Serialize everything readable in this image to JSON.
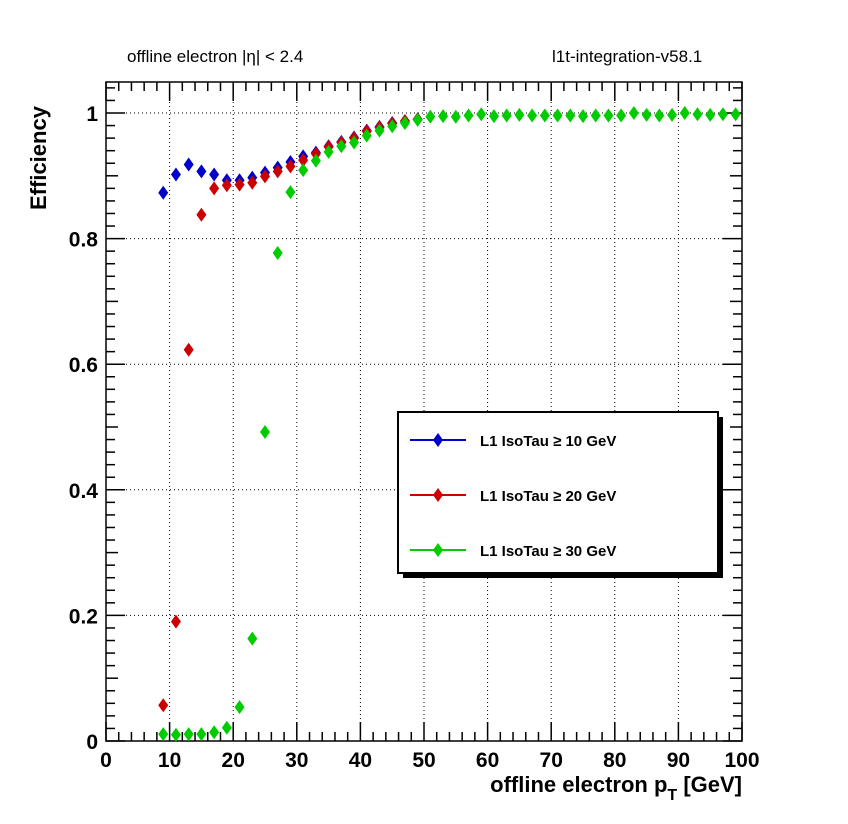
{
  "header": {
    "left": "offline electron |η| < 2.4",
    "right": "l1t-integration-v58.1"
  },
  "chart_data": {
    "type": "scatter",
    "xlabel": "offline electron p",
    "xlabel_sub": "T",
    "xlabel_unit": " [GeV]",
    "ylabel": "Efficiency",
    "xlim": [
      0,
      100
    ],
    "ylim": [
      0,
      1.05
    ],
    "x_ticks": [
      "0",
      "10",
      "20",
      "30",
      "40",
      "50",
      "60",
      "70",
      "80",
      "90",
      "100"
    ],
    "y_ticks": [
      "0",
      "0.2",
      "0.4",
      "0.6",
      "0.8",
      "1"
    ],
    "grid": true,
    "legend_position": "center-right",
    "series": [
      {
        "name": "L1 IsoTau ≥ 10 GeV",
        "color": "#0000cc",
        "x": [
          9,
          11,
          13,
          15,
          17,
          19,
          21,
          23,
          25,
          27,
          29,
          31,
          33,
          35,
          37,
          39,
          41,
          43,
          45,
          47,
          49
        ],
        "y": [
          0.873,
          0.902,
          0.918,
          0.907,
          0.902,
          0.893,
          0.893,
          0.897,
          0.905,
          0.913,
          0.922,
          0.931,
          0.937,
          0.947,
          0.954,
          0.961,
          0.972,
          0.978,
          0.984,
          0.987,
          0.99
        ]
      },
      {
        "name": "L1 IsoTau ≥ 20 GeV",
        "color": "#cc0000",
        "x": [
          9,
          11,
          13,
          15,
          17,
          19,
          21,
          23,
          25,
          27,
          29,
          31,
          33,
          35,
          37,
          39,
          41,
          43,
          45,
          47,
          49
        ],
        "y": [
          0.057,
          0.19,
          0.623,
          0.838,
          0.88,
          0.885,
          0.886,
          0.889,
          0.899,
          0.907,
          0.915,
          0.925,
          0.935,
          0.946,
          0.953,
          0.96,
          0.971,
          0.977,
          0.983,
          0.987,
          0.99
        ]
      },
      {
        "name": "L1 IsoTau ≥ 30 GeV",
        "color": "#00cc00",
        "x": [
          9,
          11,
          13,
          15,
          17,
          19,
          21,
          23,
          25,
          27,
          29,
          31,
          33,
          35,
          37,
          39,
          41,
          43,
          45,
          47,
          49,
          51,
          53,
          55,
          57,
          59,
          61,
          63,
          65,
          67,
          69,
          71,
          73,
          75,
          77,
          79,
          81,
          83,
          85,
          87,
          89,
          91,
          93,
          95,
          97,
          99
        ],
        "y": [
          0.011,
          0.01,
          0.011,
          0.011,
          0.014,
          0.021,
          0.054,
          0.163,
          0.492,
          0.777,
          0.874,
          0.909,
          0.924,
          0.938,
          0.947,
          0.953,
          0.964,
          0.972,
          0.979,
          0.984,
          0.989,
          0.994,
          0.995,
          0.994,
          0.996,
          0.998,
          0.995,
          0.996,
          0.997,
          0.996,
          0.996,
          0.996,
          0.996,
          0.995,
          0.996,
          0.996,
          0.996,
          1.0,
          0.997,
          0.996,
          0.997,
          1.0,
          0.998,
          0.997,
          0.998,
          0.998
        ]
      }
    ]
  }
}
